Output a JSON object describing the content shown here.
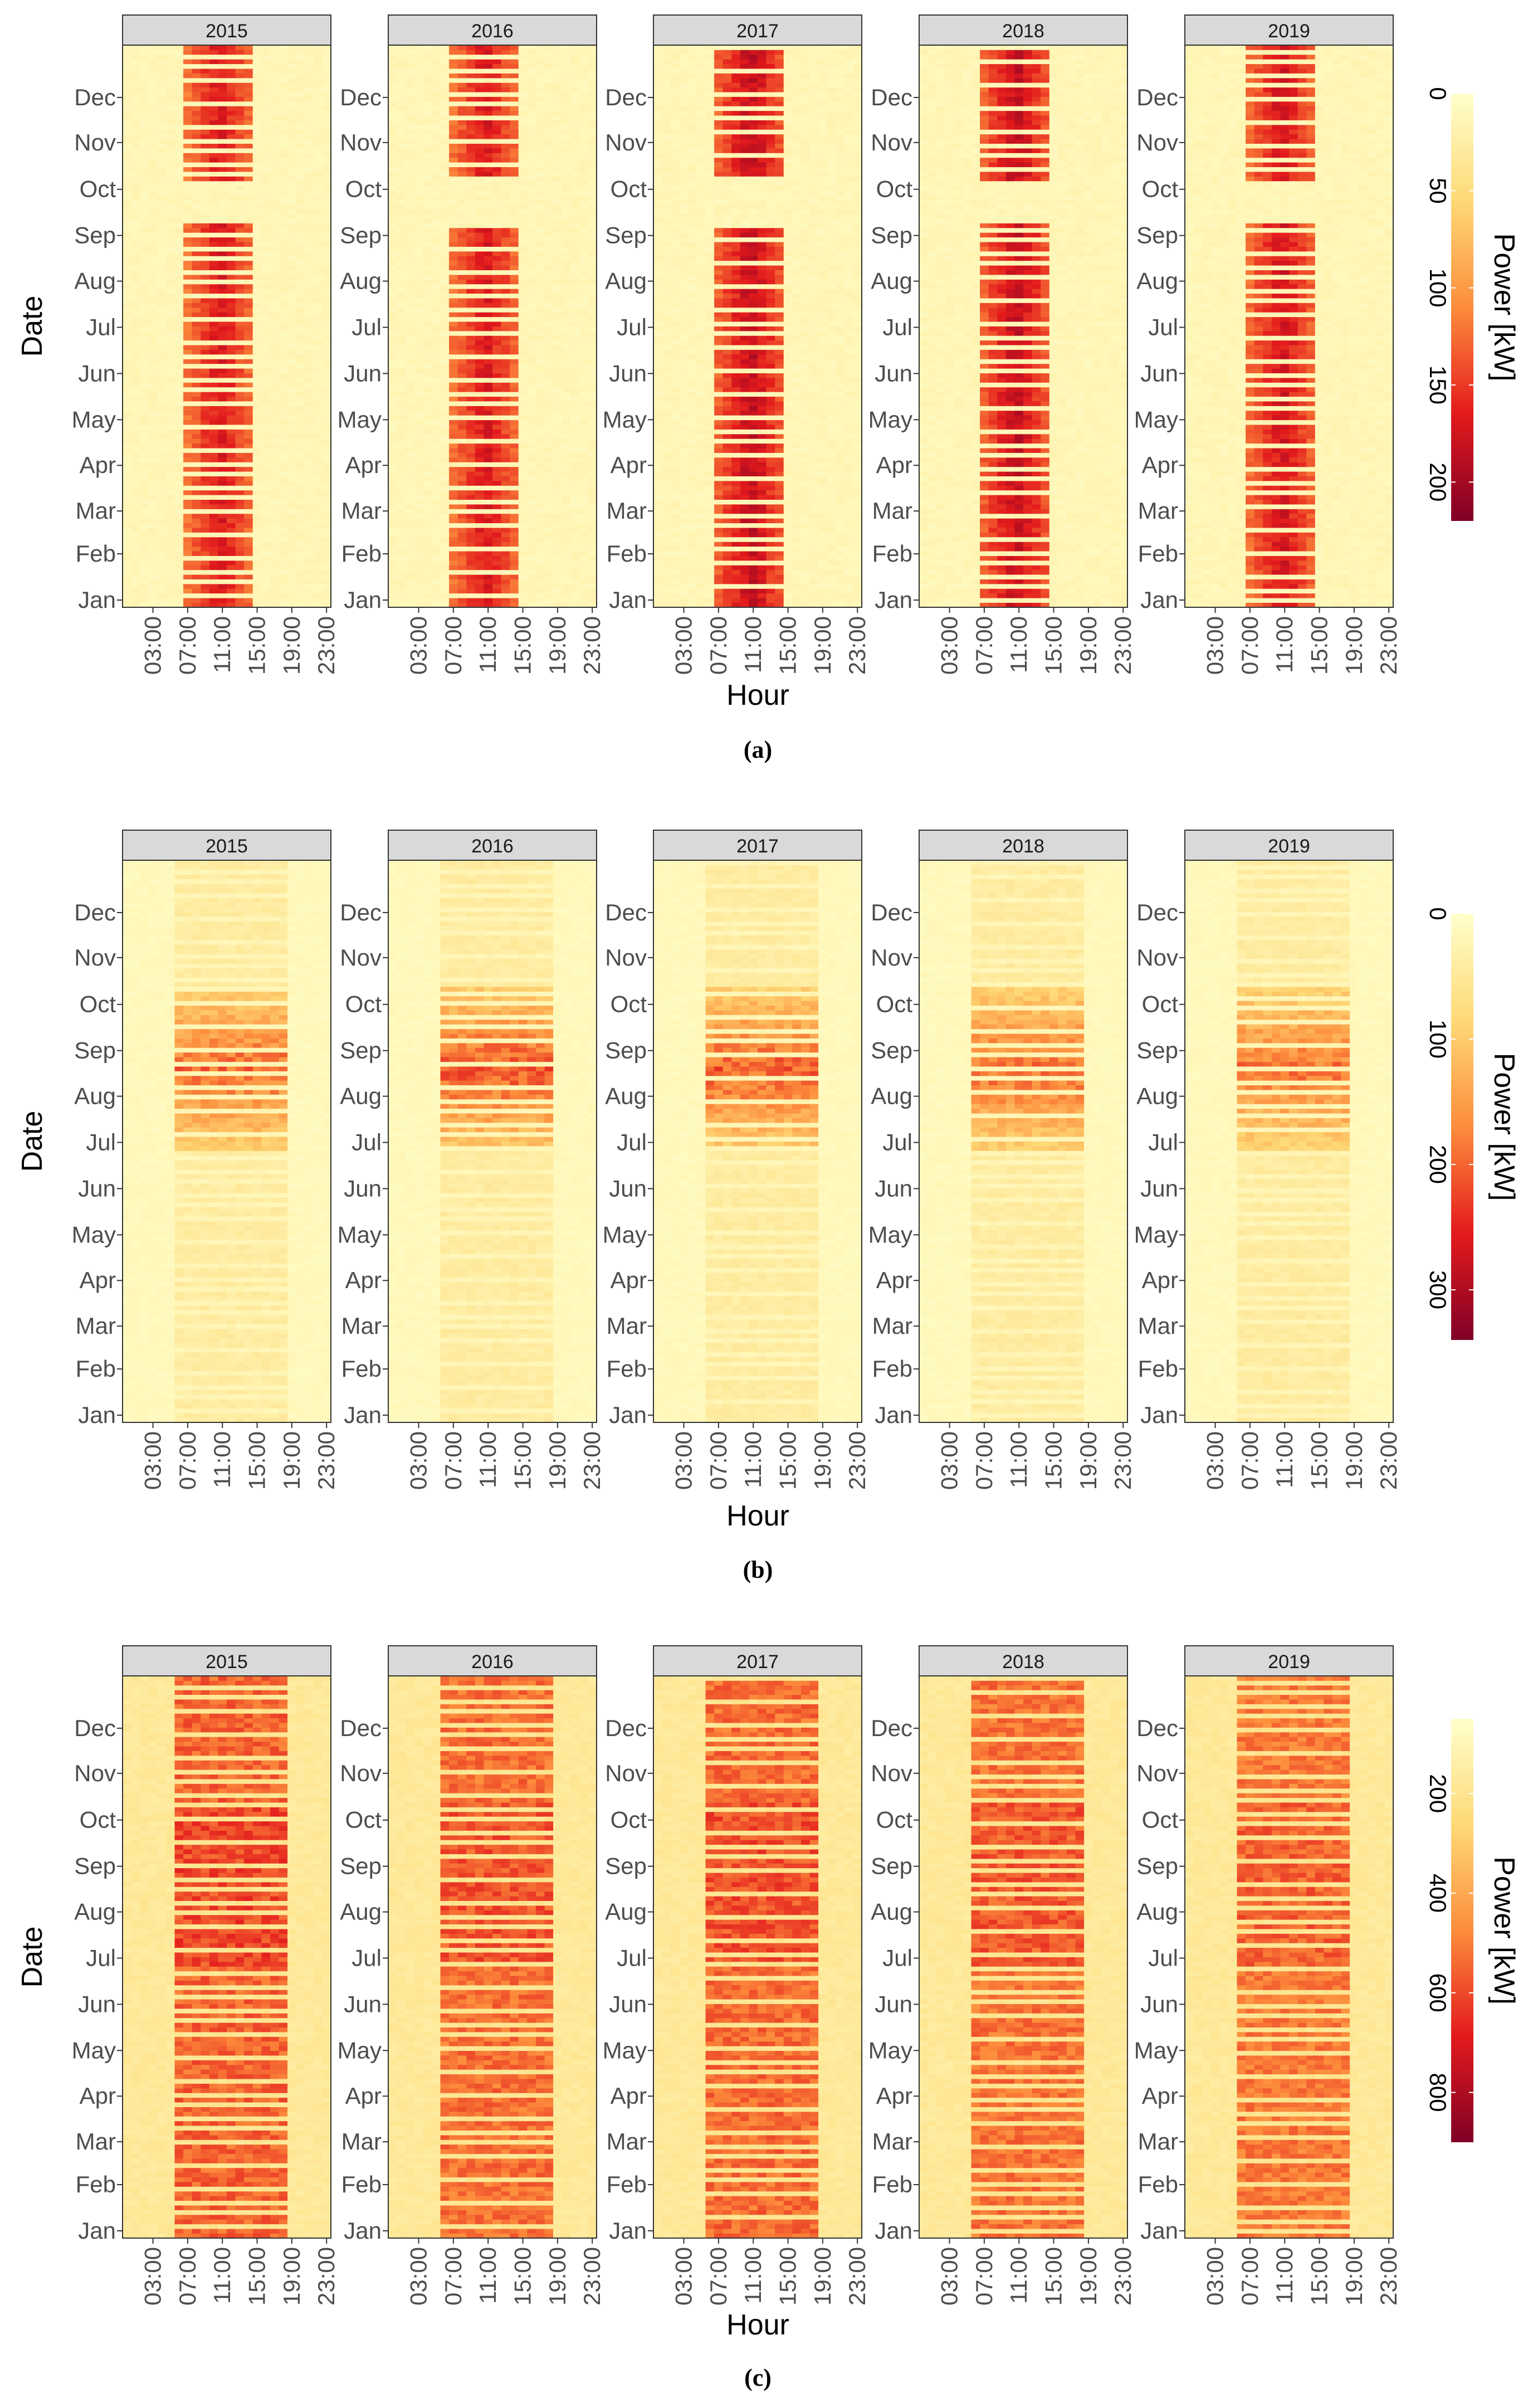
{
  "colors": {
    "low": "#ffffcc",
    "mid1": "#fed976",
    "mid2": "#fd8d3c",
    "mid3": "#e31a1c",
    "high": "#800026",
    "strip_bg": "#d9d9d9"
  },
  "chart_data": [
    {
      "type": "heatmap",
      "panel_label": "(a)",
      "facets": [
        "2015",
        "2016",
        "2017",
        "2018",
        "2019"
      ],
      "xlabel": "Hour",
      "ylabel": "Date",
      "x_ticks": [
        "03:00",
        "07:00",
        "11:00",
        "15:00",
        "19:00",
        "23:00"
      ],
      "y_ticks": [
        "Jan",
        "Feb",
        "Mar",
        "Apr",
        "May",
        "Jun",
        "Jul",
        "Aug",
        "Sep",
        "Oct",
        "Nov",
        "Dec"
      ],
      "legend_title": "Power [kW]",
      "legend_ticks": [
        0,
        50,
        100,
        150,
        200
      ],
      "legend_range": [
        0,
        220
      ],
      "pattern": "weekday_daytime",
      "active_hours": [
        [
          7,
          15.5
        ],
        [
          7,
          15.5
        ],
        [
          7,
          15.5
        ],
        [
          7,
          15.5
        ],
        [
          7,
          15.5
        ]
      ],
      "peak_values": [
        185,
        185,
        200,
        200,
        190
      ],
      "summer_break_month": 8.2
    },
    {
      "type": "heatmap",
      "panel_label": "(b)",
      "facets": [
        "2015",
        "2016",
        "2017",
        "2018",
        "2019"
      ],
      "xlabel": "Hour",
      "ylabel": "Date",
      "x_ticks": [
        "03:00",
        "07:00",
        "11:00",
        "15:00",
        "19:00",
        "23:00"
      ],
      "y_ticks": [
        "Jan",
        "Feb",
        "Mar",
        "Apr",
        "May",
        "Jun",
        "Jul",
        "Aug",
        "Sep",
        "Oct",
        "Nov",
        "Dec"
      ],
      "legend_title": "Power [kW]",
      "legend_ticks": [
        0,
        100,
        200,
        300
      ],
      "legend_range": [
        0,
        340
      ],
      "pattern": "summer_cooling",
      "active_hours": [
        [
          6.5,
          19.5
        ],
        [
          6.5,
          19.5
        ],
        [
          6.5,
          19.5
        ],
        [
          6.5,
          19.5
        ],
        [
          6.5,
          19.5
        ]
      ],
      "peak_values": [
        230,
        250,
        240,
        230,
        220
      ],
      "summer_months": [
        5.7,
        9.3
      ]
    },
    {
      "type": "heatmap",
      "panel_label": "(c)",
      "facets": [
        "2015",
        "2016",
        "2017",
        "2018",
        "2019"
      ],
      "xlabel": "Hour",
      "ylabel": "Date",
      "x_ticks": [
        "03:00",
        "07:00",
        "11:00",
        "15:00",
        "19:00",
        "23:00"
      ],
      "y_ticks": [
        "Jan",
        "Feb",
        "Mar",
        "Apr",
        "May",
        "Jun",
        "Jul",
        "Aug",
        "Sep",
        "Oct",
        "Nov",
        "Dec"
      ],
      "legend_title": "Power [kW]",
      "legend_ticks": [
        200,
        400,
        600,
        800
      ],
      "legend_range": [
        50,
        900
      ],
      "pattern": "combined",
      "active_hours": [
        [
          6.5,
          19.5
        ],
        [
          6.5,
          19.5
        ],
        [
          6.5,
          19.5
        ],
        [
          6.5,
          19.5
        ],
        [
          6.5,
          19.5
        ]
      ],
      "peak_values": [
        720,
        690,
        700,
        680,
        660
      ],
      "summer_months": [
        5.7,
        9.3
      ]
    }
  ]
}
